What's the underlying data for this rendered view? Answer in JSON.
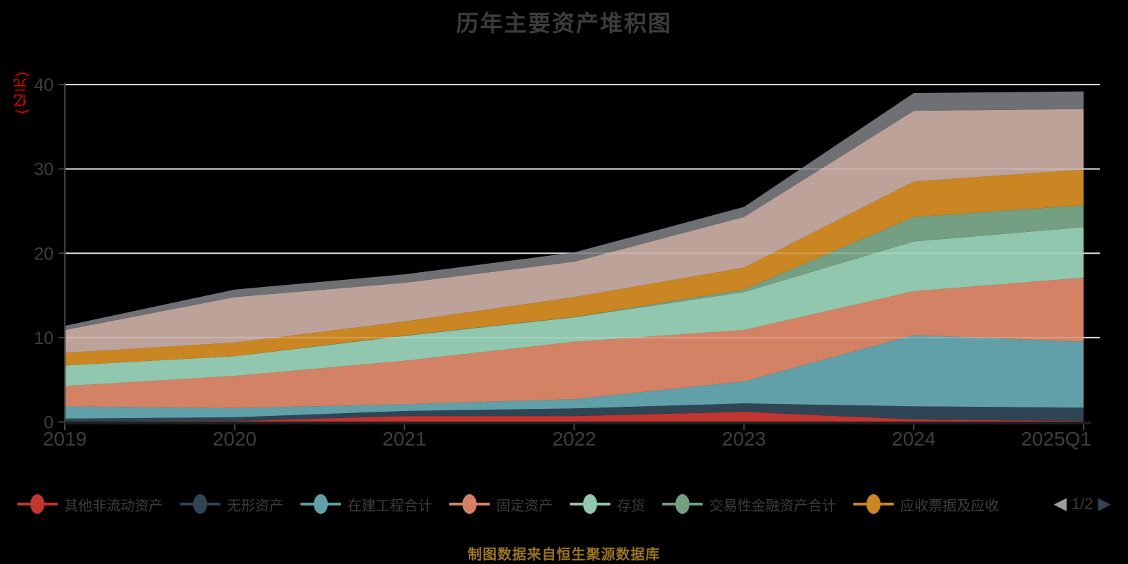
{
  "title": "历年主要资产堆积图",
  "y_axis": {
    "unit_label": "(亿元)",
    "unit_label_color": "#e60000",
    "ticks": [
      0,
      10,
      20,
      30,
      40
    ],
    "tick_text_color": "#3e3e3e"
  },
  "x_axis": {
    "tick_text_color": "#3e3e3e"
  },
  "legend": {
    "items": [
      {
        "label": "其他非流动资产",
        "color": "#c23531"
      },
      {
        "label": "无形资产",
        "color": "#2f4554"
      },
      {
        "label": "在建工程合计",
        "color": "#61a0a8"
      },
      {
        "label": "固定资产",
        "color": "#d48265"
      },
      {
        "label": "存货",
        "color": "#91c7ae"
      },
      {
        "label": "交易性金融资产合计",
        "color": "#749f83"
      },
      {
        "label": "应收票据及应收",
        "color": "#ca8622"
      }
    ],
    "pagination": {
      "current": "1/2",
      "prev_icon": "◀",
      "next_icon": "▶",
      "prev_color": "#9e9e9e",
      "next_color": "#2f4554"
    }
  },
  "footer": "制图数据来自恒生聚源数据库",
  "colors": {
    "background": "#000000",
    "title_text": "#3c3c3c",
    "grid_line": "#d0d0d0",
    "grid_line_overlay": "rgba(255,255,255,0.22)",
    "y_axis_line": "#3f3f3f",
    "x_axis_line": "#1e1e1e",
    "x_tick_mark": "#4a4a4a",
    "footer_text": "#9a741f"
  },
  "chart_data": {
    "type": "area",
    "stacked": true,
    "title": "历年主要资产堆积图",
    "y_unit": "(亿元)",
    "ylim": [
      0,
      40
    ],
    "grid": true,
    "legend_position": "bottom",
    "x": [
      "2019",
      "2020",
      "2021",
      "2022",
      "2023",
      "2024",
      "2025Q1"
    ],
    "series": [
      {
        "name": "其他非流动资产",
        "color": "#c23531",
        "values": [
          0.05,
          0.1,
          0.7,
          0.7,
          1.2,
          0.3,
          0.1
        ]
      },
      {
        "name": "无形资产",
        "color": "#2f4554",
        "values": [
          0.35,
          0.45,
          0.6,
          0.9,
          1.0,
          1.55,
          1.6
        ]
      },
      {
        "name": "在建工程合计",
        "color": "#61a0a8",
        "values": [
          1.45,
          1.1,
          0.8,
          1.1,
          2.6,
          8.45,
          7.8
        ]
      },
      {
        "name": "固定资产",
        "color": "#d48265",
        "values": [
          2.4,
          3.8,
          5.15,
          6.8,
          6.1,
          5.2,
          7.6
        ]
      },
      {
        "name": "存货",
        "color": "#91c7ae",
        "values": [
          2.45,
          2.35,
          2.95,
          2.9,
          4.5,
          5.9,
          6.0
        ]
      },
      {
        "name": "交易性金融资产合计",
        "color": "#749f83",
        "values": [
          0,
          0,
          0.05,
          0.05,
          0.3,
          2.9,
          2.6
        ]
      },
      {
        "name": "应收票据及应收",
        "color": "#ca8622",
        "values": [
          1.5,
          1.6,
          1.65,
          2.35,
          2.6,
          4.2,
          4.2
        ]
      },
      {
        "name": "",
        "color": "#bda29a",
        "values": [
          2.7,
          5.4,
          4.6,
          4.2,
          6.0,
          8.4,
          7.2
        ]
      },
      {
        "name": "",
        "color": "#6e7074",
        "values": [
          0.5,
          0.9,
          1.0,
          1.1,
          1.2,
          2.1,
          2.1
        ]
      }
    ]
  }
}
